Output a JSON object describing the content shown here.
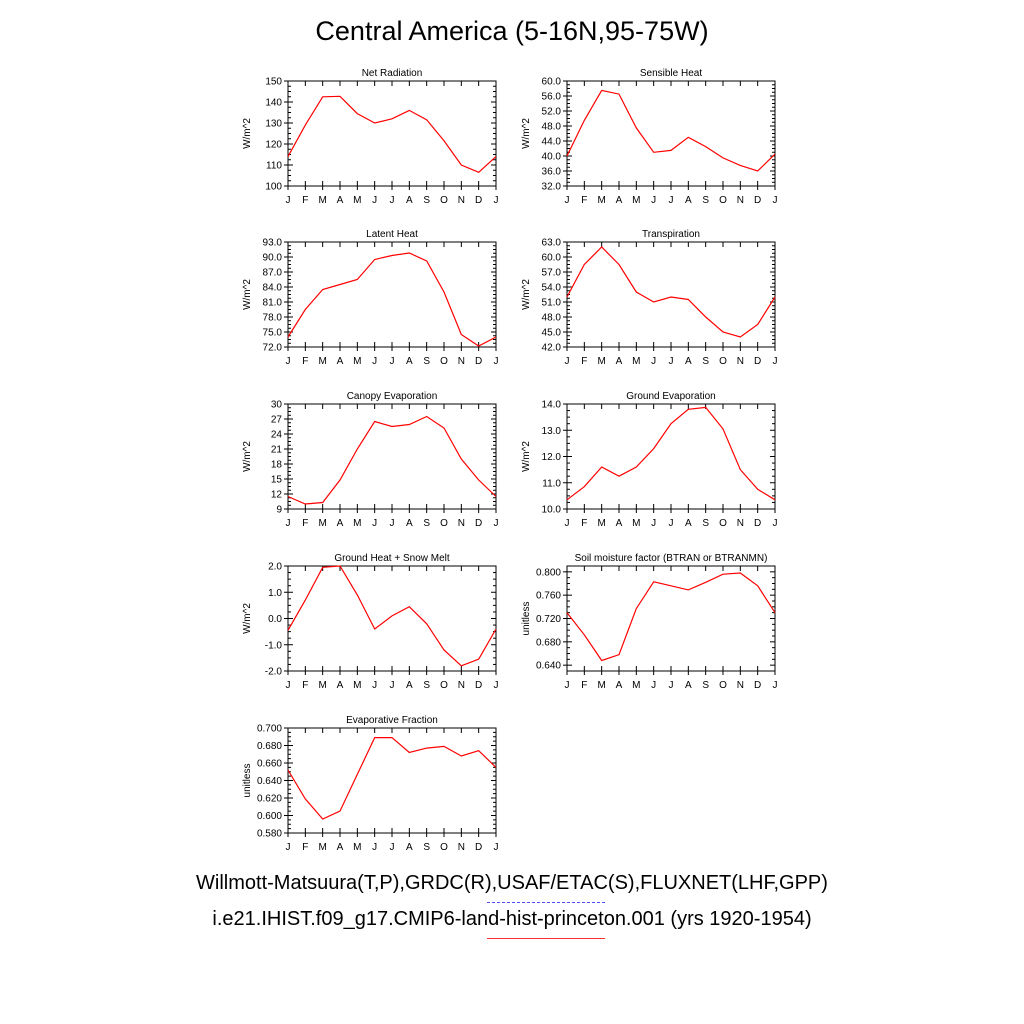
{
  "title": "Central America (5-16N,95-75W)",
  "month_labels": [
    "J",
    "F",
    "M",
    "A",
    "M",
    "J",
    "J",
    "A",
    "S",
    "O",
    "N",
    "D",
    "J"
  ],
  "colors": {
    "model": "#ff0000",
    "observations": "#4d4dff"
  },
  "legend": {
    "observations": "Willmott-Matsuura(T,P),GRDC(R),USAF/ETAC(S),FLUXNET(LHF,GPP)",
    "model": "i.e21.IHIST.f09_g17.CMIP6-land-hist-princeton.001 (yrs 1920-1954)"
  },
  "chart_data": [
    {
      "type": "line",
      "title": "Net Radiation",
      "ylabel": "W/m^2",
      "ylim": [
        100,
        150
      ],
      "yticks": [
        "100",
        "110",
        "120",
        "130",
        "140",
        "150"
      ],
      "x": [
        "J",
        "F",
        "M",
        "A",
        "M",
        "J",
        "J",
        "A",
        "S",
        "O",
        "N",
        "D",
        "J"
      ],
      "series": [
        {
          "values": [
            114,
            129,
            142.5,
            142.7,
            134.5,
            130,
            132,
            136,
            131.5,
            121.5,
            110,
            106.5,
            114
          ]
        }
      ]
    },
    {
      "type": "line",
      "title": "Sensible Heat",
      "ylabel": "W/m^2",
      "ylim": [
        32,
        60
      ],
      "yticks": [
        "32.0",
        "36.0",
        "40.0",
        "44.0",
        "48.0",
        "52.0",
        "56.0",
        "60.0"
      ],
      "x": [
        "J",
        "F",
        "M",
        "A",
        "M",
        "J",
        "J",
        "A",
        "S",
        "O",
        "N",
        "D",
        "J"
      ],
      "series": [
        {
          "values": [
            40,
            49.5,
            57.5,
            56.5,
            47.5,
            41,
            41.5,
            45,
            42.5,
            39.5,
            37.5,
            36,
            40.5
          ]
        }
      ]
    },
    {
      "type": "line",
      "title": "Latent Heat",
      "ylabel": "W/m^2",
      "ylim": [
        72,
        93
      ],
      "yticks": [
        "72.0",
        "75.0",
        "78.0",
        "81.0",
        "84.0",
        "87.0",
        "90.0",
        "93.0"
      ],
      "x": [
        "J",
        "F",
        "M",
        "A",
        "M",
        "J",
        "J",
        "A",
        "S",
        "O",
        "N",
        "D",
        "J"
      ],
      "series": [
        {
          "values": [
            74,
            79.5,
            83.5,
            84.5,
            85.5,
            89.5,
            90.3,
            90.8,
            89.2,
            83,
            74.5,
            72.2,
            74
          ]
        }
      ]
    },
    {
      "type": "line",
      "title": "Transpiration",
      "ylabel": "W/m^2",
      "ylim": [
        42,
        63
      ],
      "yticks": [
        "42.0",
        "45.0",
        "48.0",
        "51.0",
        "54.0",
        "57.0",
        "60.0",
        "63.0"
      ],
      "x": [
        "J",
        "F",
        "M",
        "A",
        "M",
        "J",
        "J",
        "A",
        "S",
        "O",
        "N",
        "D",
        "J"
      ],
      "series": [
        {
          "values": [
            52,
            58.5,
            62,
            58.5,
            53,
            51,
            52,
            51.5,
            48,
            45,
            44,
            46.5,
            52
          ]
        }
      ]
    },
    {
      "type": "line",
      "title": "Canopy Evaporation",
      "ylabel": "W/m^2",
      "ylim": [
        9,
        30
      ],
      "yticks": [
        "9",
        "12",
        "15",
        "18",
        "21",
        "24",
        "27",
        "30"
      ],
      "x": [
        "J",
        "F",
        "M",
        "A",
        "M",
        "J",
        "J",
        "A",
        "S",
        "O",
        "N",
        "D",
        "J"
      ],
      "series": [
        {
          "values": [
            11.5,
            10,
            10.3,
            14.8,
            21,
            26.5,
            25.5,
            25.9,
            27.5,
            25.2,
            19,
            14.8,
            11.5
          ]
        }
      ]
    },
    {
      "type": "line",
      "title": "Ground Evaporation",
      "ylabel": "W/m^2",
      "ylim": [
        10,
        14
      ],
      "yticks": [
        "10.0",
        "11.0",
        "12.0",
        "13.0",
        "14.0"
      ],
      "x": [
        "J",
        "F",
        "M",
        "A",
        "M",
        "J",
        "J",
        "A",
        "S",
        "O",
        "N",
        "D",
        "J"
      ],
      "series": [
        {
          "values": [
            10.35,
            10.85,
            11.6,
            11.25,
            11.6,
            12.3,
            13.25,
            13.8,
            13.87,
            13.05,
            11.5,
            10.75,
            10.35
          ]
        }
      ]
    },
    {
      "type": "line",
      "title": "Ground Heat + Snow Melt",
      "ylabel": "W/m^2",
      "ylim": [
        -2,
        2
      ],
      "yticks": [
        "-2.0",
        "-1.0",
        "0.0",
        "1.0",
        "2.0"
      ],
      "x": [
        "J",
        "F",
        "M",
        "A",
        "M",
        "J",
        "J",
        "A",
        "S",
        "O",
        "N",
        "D",
        "J"
      ],
      "series": [
        {
          "values": [
            -0.45,
            0.7,
            1.95,
            2.0,
            0.9,
            -0.4,
            0.1,
            0.45,
            -0.2,
            -1.2,
            -1.8,
            -1.55,
            -0.4
          ]
        }
      ]
    },
    {
      "type": "line",
      "title": "Soil moisture factor (BTRAN or BTRANMN)",
      "ylabel": "unitless",
      "ylim": [
        0.63,
        0.81
      ],
      "yticks": [
        "0.640",
        "0.680",
        "0.720",
        "0.760",
        "0.800"
      ],
      "x": [
        "J",
        "F",
        "M",
        "A",
        "M",
        "J",
        "J",
        "A",
        "S",
        "O",
        "N",
        "D",
        "J"
      ],
      "series": [
        {
          "values": [
            0.73,
            0.692,
            0.648,
            0.658,
            0.737,
            0.783,
            0.776,
            0.769,
            0.782,
            0.796,
            0.798,
            0.776,
            0.73
          ]
        }
      ]
    },
    {
      "type": "line",
      "title": "Evaporative Fraction",
      "ylabel": "unitless",
      "ylim": [
        0.58,
        0.7
      ],
      "yticks": [
        "0.580",
        "0.600",
        "0.620",
        "0.640",
        "0.660",
        "0.680",
        "0.700"
      ],
      "x": [
        "J",
        "F",
        "M",
        "A",
        "M",
        "J",
        "J",
        "A",
        "S",
        "O",
        "N",
        "D",
        "J"
      ],
      "series": [
        {
          "values": [
            0.652,
            0.619,
            0.596,
            0.605,
            0.647,
            0.689,
            0.689,
            0.672,
            0.677,
            0.679,
            0.668,
            0.674,
            0.655
          ]
        }
      ]
    }
  ]
}
